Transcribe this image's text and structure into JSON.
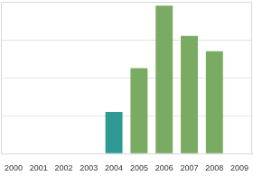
{
  "chart_data": {
    "type": "bar",
    "categories": [
      "2000",
      "2001",
      "2002",
      "2003",
      "2004",
      "2005",
      "2006",
      "2007",
      "2008",
      "2009"
    ],
    "values": [
      null,
      null,
      null,
      null,
      1.1,
      2.25,
      3.9,
      3.1,
      2.7,
      null
    ],
    "colors": [
      "#7aab62",
      "#7aab62",
      "#7aab62",
      "#7aab62",
      "#2e9a94",
      "#7aab62",
      "#7aab62",
      "#7aab62",
      "#7aab62",
      "#7aab62"
    ],
    "ylim": [
      0,
      4
    ],
    "yticks": [
      0,
      1,
      2,
      3,
      4
    ],
    "grid": true,
    "tick_labels": "x"
  }
}
